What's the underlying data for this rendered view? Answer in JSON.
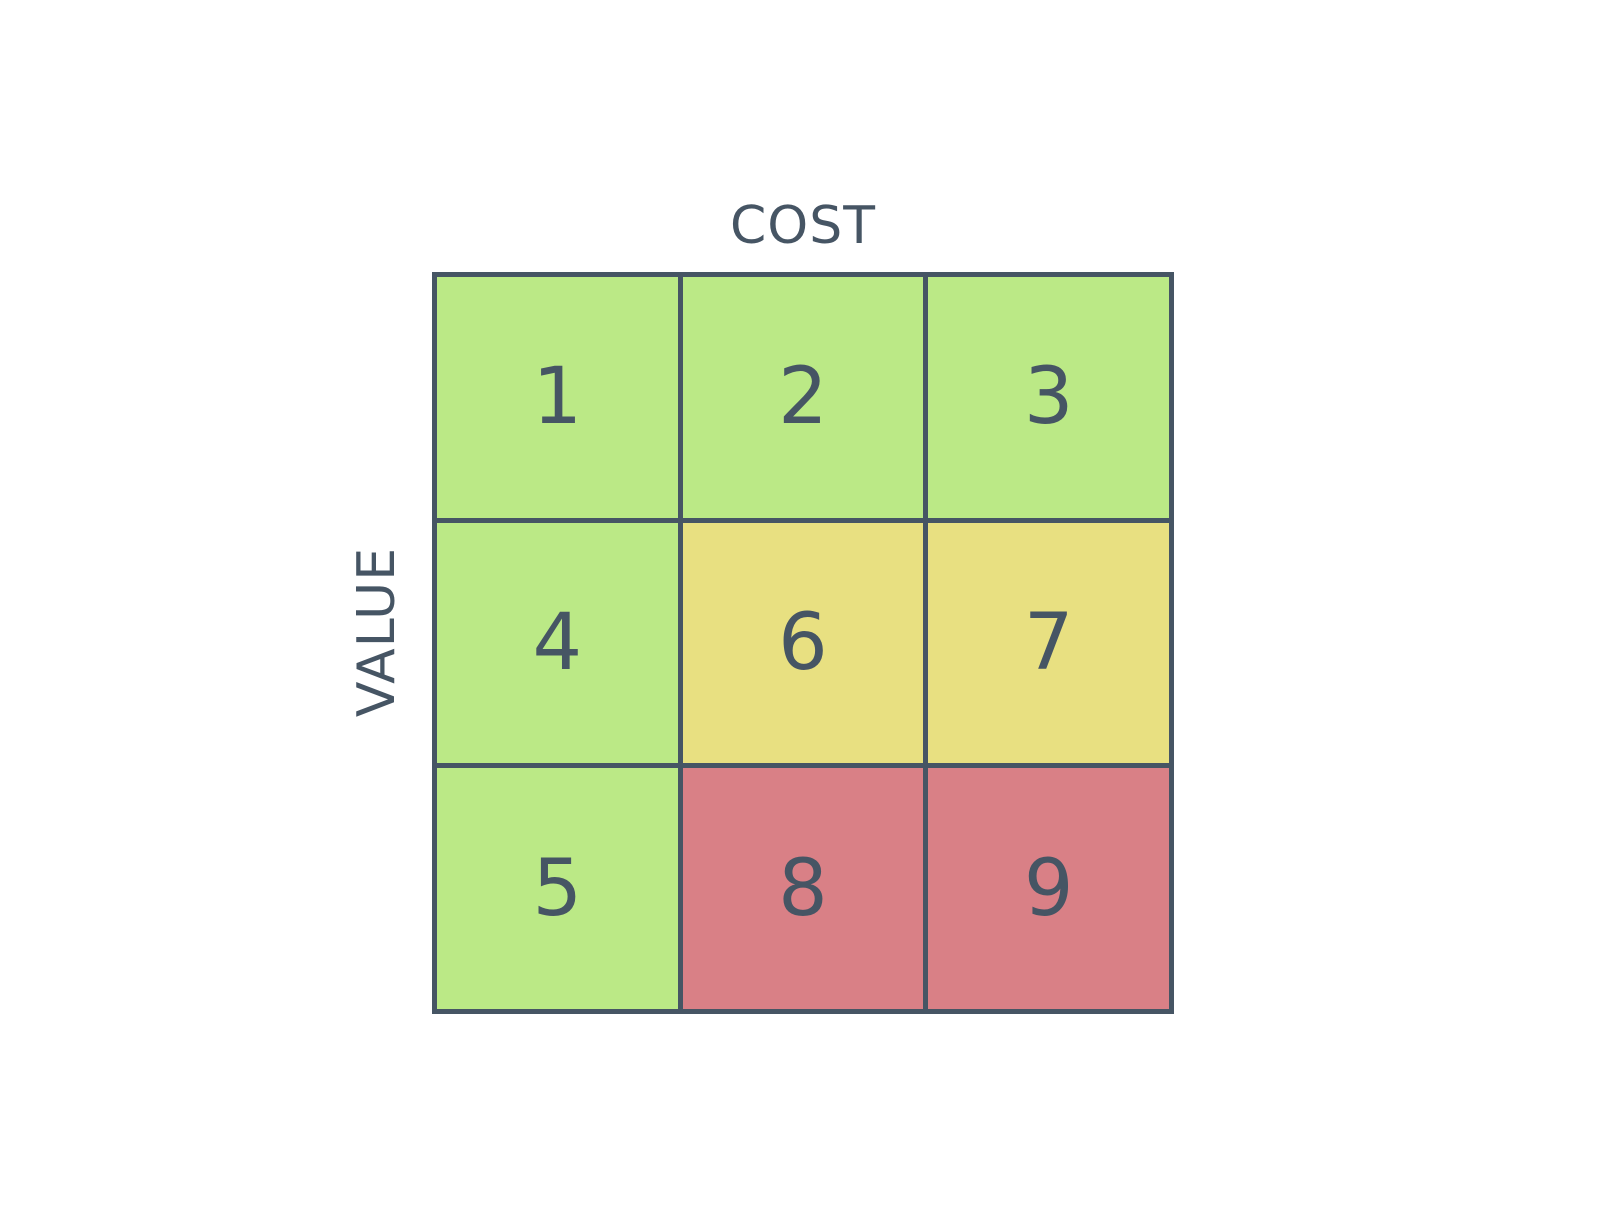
{
  "axes": {
    "x_label": "COST",
    "y_label": "VALUE"
  },
  "colors": {
    "green": "#bbe986",
    "yellow": "#e8e081",
    "red": "#d98086",
    "outline": "#465564"
  },
  "cells": [
    {
      "label": "1",
      "color": "green"
    },
    {
      "label": "2",
      "color": "green"
    },
    {
      "label": "3",
      "color": "green"
    },
    {
      "label": "4",
      "color": "green"
    },
    {
      "label": "6",
      "color": "yellow"
    },
    {
      "label": "7",
      "color": "yellow"
    },
    {
      "label": "5",
      "color": "green"
    },
    {
      "label": "8",
      "color": "red"
    },
    {
      "label": "9",
      "color": "red"
    }
  ]
}
